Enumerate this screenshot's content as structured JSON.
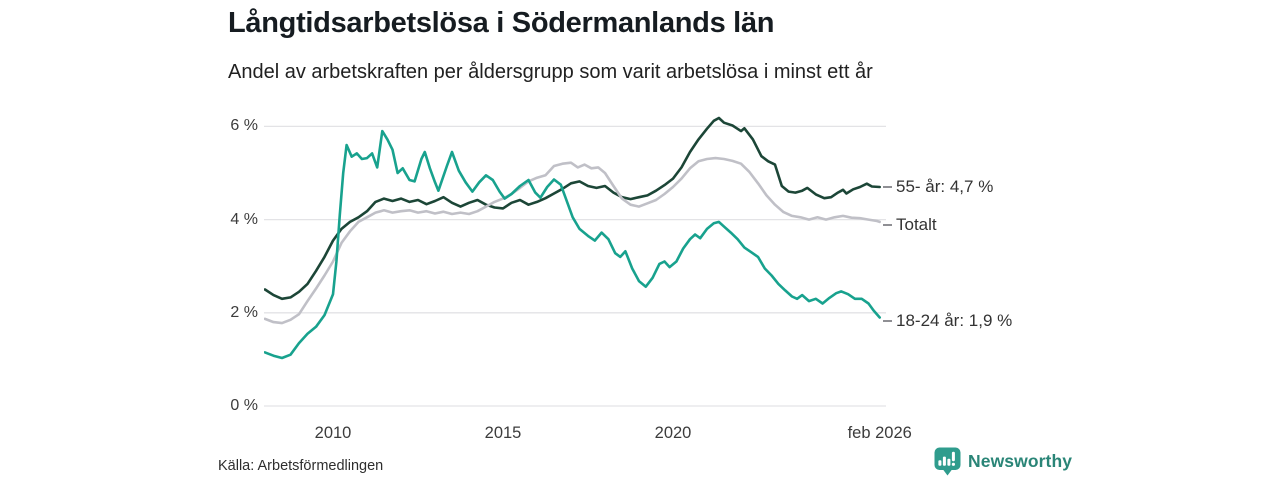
{
  "header": {
    "title": "Långtidsarbetslösa i Södermanlands län",
    "subtitle": "Andel av arbetskraften per åldersgrupp som varit arbetslösa i minst ett år"
  },
  "footer": {
    "source": "Källa: Arbetsförmedlingen",
    "brand": "Newsworthy",
    "brand_icon": "newsworthy-chart-bubble-icon"
  },
  "colors": {
    "age_55_line": "#1c4637",
    "total_line": "#c0c0c7",
    "age_18_24_line": "#18a28e",
    "grid": "#e3e3e6",
    "tick_dash": "#8f8f94",
    "label_text": "#333333",
    "brand_teal": "#2a8577",
    "logo_teal": "#2f9c8d"
  },
  "chart_data": {
    "type": "line",
    "title": "Långtidsarbetslösa i Södermanlands län",
    "subtitle": "Andel av arbetskraften per åldersgrupp som varit arbetslösa i minst ett år",
    "xlabel": "",
    "ylabel": "",
    "xlim": [
      2008.0,
      2026.17
    ],
    "ylim": [
      0,
      6.4
    ],
    "grid": "horizontal",
    "legend_position": "right-end-labels",
    "yticks": [
      {
        "label": "6 %",
        "value": 6
      },
      {
        "label": "4 %",
        "value": 4
      },
      {
        "label": "2 %",
        "value": 2
      },
      {
        "label": "0 %",
        "value": 0
      }
    ],
    "xticks": [
      {
        "label": "2010",
        "value": 2010
      },
      {
        "label": "2015",
        "value": 2015
      },
      {
        "label": "2020",
        "value": 2020
      },
      {
        "label": "feb 2026",
        "value": 2026.08
      }
    ],
    "series": [
      {
        "name": "55- år",
        "end_label": "55- år: 4,7 %",
        "last_value_text": "4,7 %",
        "color": "#1c4637",
        "points": [
          [
            2008.0,
            2.5
          ],
          [
            2008.25,
            2.38
          ],
          [
            2008.5,
            2.3
          ],
          [
            2008.75,
            2.33
          ],
          [
            2009.0,
            2.45
          ],
          [
            2009.25,
            2.62
          ],
          [
            2009.5,
            2.9
          ],
          [
            2009.75,
            3.2
          ],
          [
            2010.0,
            3.55
          ],
          [
            2010.25,
            3.8
          ],
          [
            2010.5,
            3.95
          ],
          [
            2010.75,
            4.05
          ],
          [
            2011.0,
            4.18
          ],
          [
            2011.25,
            4.38
          ],
          [
            2011.5,
            4.45
          ],
          [
            2011.75,
            4.4
          ],
          [
            2012.0,
            4.45
          ],
          [
            2012.25,
            4.38
          ],
          [
            2012.5,
            4.42
          ],
          [
            2012.75,
            4.33
          ],
          [
            2013.0,
            4.4
          ],
          [
            2013.25,
            4.48
          ],
          [
            2013.5,
            4.36
          ],
          [
            2013.75,
            4.28
          ],
          [
            2014.0,
            4.36
          ],
          [
            2014.25,
            4.42
          ],
          [
            2014.5,
            4.32
          ],
          [
            2014.75,
            4.26
          ],
          [
            2015.0,
            4.24
          ],
          [
            2015.25,
            4.36
          ],
          [
            2015.5,
            4.42
          ],
          [
            2015.75,
            4.32
          ],
          [
            2016.0,
            4.38
          ],
          [
            2016.25,
            4.46
          ],
          [
            2016.5,
            4.56
          ],
          [
            2016.75,
            4.66
          ],
          [
            2017.0,
            4.78
          ],
          [
            2017.25,
            4.82
          ],
          [
            2017.5,
            4.72
          ],
          [
            2017.75,
            4.68
          ],
          [
            2018.0,
            4.72
          ],
          [
            2018.25,
            4.58
          ],
          [
            2018.5,
            4.48
          ],
          [
            2018.75,
            4.44
          ],
          [
            2019.0,
            4.48
          ],
          [
            2019.25,
            4.52
          ],
          [
            2019.5,
            4.62
          ],
          [
            2019.75,
            4.74
          ],
          [
            2020.0,
            4.88
          ],
          [
            2020.25,
            5.12
          ],
          [
            2020.5,
            5.45
          ],
          [
            2020.75,
            5.72
          ],
          [
            2021.0,
            5.95
          ],
          [
            2021.2,
            6.12
          ],
          [
            2021.35,
            6.18
          ],
          [
            2021.5,
            6.08
          ],
          [
            2021.75,
            6.02
          ],
          [
            2022.0,
            5.9
          ],
          [
            2022.1,
            5.96
          ],
          [
            2022.35,
            5.72
          ],
          [
            2022.6,
            5.36
          ],
          [
            2022.8,
            5.25
          ],
          [
            2023.0,
            5.18
          ],
          [
            2023.2,
            4.72
          ],
          [
            2023.4,
            4.6
          ],
          [
            2023.6,
            4.58
          ],
          [
            2023.8,
            4.62
          ],
          [
            2023.95,
            4.68
          ],
          [
            2024.2,
            4.54
          ],
          [
            2024.45,
            4.46
          ],
          [
            2024.65,
            4.48
          ],
          [
            2024.85,
            4.58
          ],
          [
            2025.0,
            4.64
          ],
          [
            2025.1,
            4.56
          ],
          [
            2025.3,
            4.65
          ],
          [
            2025.5,
            4.7
          ],
          [
            2025.7,
            4.77
          ],
          [
            2025.85,
            4.71
          ],
          [
            2026.08,
            4.7
          ]
        ]
      },
      {
        "name": "Totalt",
        "end_label": "Totalt",
        "last_value_text": "",
        "color": "#c0c0c7",
        "points": [
          [
            2008.0,
            1.87
          ],
          [
            2008.25,
            1.8
          ],
          [
            2008.5,
            1.78
          ],
          [
            2008.75,
            1.85
          ],
          [
            2009.0,
            1.97
          ],
          [
            2009.25,
            2.25
          ],
          [
            2009.5,
            2.52
          ],
          [
            2009.75,
            2.8
          ],
          [
            2010.0,
            3.1
          ],
          [
            2010.25,
            3.5
          ],
          [
            2010.5,
            3.75
          ],
          [
            2010.75,
            3.95
          ],
          [
            2011.0,
            4.05
          ],
          [
            2011.25,
            4.15
          ],
          [
            2011.5,
            4.2
          ],
          [
            2011.75,
            4.15
          ],
          [
            2012.0,
            4.18
          ],
          [
            2012.25,
            4.2
          ],
          [
            2012.5,
            4.15
          ],
          [
            2012.75,
            4.18
          ],
          [
            2013.0,
            4.13
          ],
          [
            2013.25,
            4.17
          ],
          [
            2013.5,
            4.12
          ],
          [
            2013.75,
            4.15
          ],
          [
            2014.0,
            4.12
          ],
          [
            2014.25,
            4.18
          ],
          [
            2014.5,
            4.28
          ],
          [
            2014.75,
            4.38
          ],
          [
            2015.0,
            4.45
          ],
          [
            2015.25,
            4.55
          ],
          [
            2015.5,
            4.68
          ],
          [
            2015.75,
            4.82
          ],
          [
            2016.0,
            4.9
          ],
          [
            2016.25,
            4.95
          ],
          [
            2016.5,
            5.15
          ],
          [
            2016.75,
            5.2
          ],
          [
            2017.0,
            5.22
          ],
          [
            2017.2,
            5.12
          ],
          [
            2017.4,
            5.18
          ],
          [
            2017.6,
            5.1
          ],
          [
            2017.8,
            5.12
          ],
          [
            2018.0,
            5.0
          ],
          [
            2018.25,
            4.72
          ],
          [
            2018.5,
            4.45
          ],
          [
            2018.75,
            4.32
          ],
          [
            2019.0,
            4.28
          ],
          [
            2019.25,
            4.35
          ],
          [
            2019.5,
            4.42
          ],
          [
            2019.75,
            4.55
          ],
          [
            2020.0,
            4.7
          ],
          [
            2020.25,
            4.88
          ],
          [
            2020.5,
            5.1
          ],
          [
            2020.75,
            5.25
          ],
          [
            2021.0,
            5.3
          ],
          [
            2021.25,
            5.32
          ],
          [
            2021.5,
            5.3
          ],
          [
            2021.75,
            5.26
          ],
          [
            2022.0,
            5.2
          ],
          [
            2022.25,
            5.02
          ],
          [
            2022.5,
            4.78
          ],
          [
            2022.75,
            4.52
          ],
          [
            2023.0,
            4.32
          ],
          [
            2023.25,
            4.16
          ],
          [
            2023.5,
            4.08
          ],
          [
            2023.75,
            4.05
          ],
          [
            2024.0,
            4.0
          ],
          [
            2024.25,
            4.05
          ],
          [
            2024.5,
            4.0
          ],
          [
            2024.75,
            4.05
          ],
          [
            2025.0,
            4.08
          ],
          [
            2025.25,
            4.04
          ],
          [
            2025.5,
            4.03
          ],
          [
            2025.75,
            4.0
          ],
          [
            2026.0,
            3.97
          ],
          [
            2026.08,
            3.95
          ]
        ]
      },
      {
        "name": "18-24 år",
        "end_label": "18-24 år: 1,9 %",
        "last_value_text": "1,9 %",
        "color": "#18a28e",
        "points": [
          [
            2008.0,
            1.15
          ],
          [
            2008.25,
            1.08
          ],
          [
            2008.5,
            1.03
          ],
          [
            2008.75,
            1.1
          ],
          [
            2009.0,
            1.35
          ],
          [
            2009.25,
            1.55
          ],
          [
            2009.5,
            1.7
          ],
          [
            2009.75,
            1.95
          ],
          [
            2010.0,
            2.4
          ],
          [
            2010.1,
            3.1
          ],
          [
            2010.2,
            4.1
          ],
          [
            2010.3,
            5.0
          ],
          [
            2010.4,
            5.6
          ],
          [
            2010.55,
            5.35
          ],
          [
            2010.7,
            5.42
          ],
          [
            2010.85,
            5.3
          ],
          [
            2011.0,
            5.32
          ],
          [
            2011.15,
            5.42
          ],
          [
            2011.3,
            5.12
          ],
          [
            2011.45,
            5.9
          ],
          [
            2011.6,
            5.72
          ],
          [
            2011.75,
            5.5
          ],
          [
            2011.9,
            5.0
          ],
          [
            2012.05,
            5.1
          ],
          [
            2012.25,
            4.85
          ],
          [
            2012.4,
            4.82
          ],
          [
            2012.6,
            5.3
          ],
          [
            2012.7,
            5.45
          ],
          [
            2012.85,
            5.1
          ],
          [
            2013.0,
            4.8
          ],
          [
            2013.1,
            4.62
          ],
          [
            2013.35,
            5.15
          ],
          [
            2013.5,
            5.45
          ],
          [
            2013.7,
            5.05
          ],
          [
            2013.9,
            4.8
          ],
          [
            2014.1,
            4.6
          ],
          [
            2014.3,
            4.8
          ],
          [
            2014.5,
            4.95
          ],
          [
            2014.7,
            4.85
          ],
          [
            2014.9,
            4.6
          ],
          [
            2015.05,
            4.45
          ],
          [
            2015.25,
            4.55
          ],
          [
            2015.5,
            4.72
          ],
          [
            2015.75,
            4.85
          ],
          [
            2015.95,
            4.58
          ],
          [
            2016.1,
            4.47
          ],
          [
            2016.3,
            4.7
          ],
          [
            2016.5,
            4.86
          ],
          [
            2016.7,
            4.75
          ],
          [
            2016.9,
            4.35
          ],
          [
            2017.05,
            4.05
          ],
          [
            2017.25,
            3.8
          ],
          [
            2017.5,
            3.65
          ],
          [
            2017.7,
            3.55
          ],
          [
            2017.9,
            3.72
          ],
          [
            2018.1,
            3.58
          ],
          [
            2018.3,
            3.28
          ],
          [
            2018.45,
            3.2
          ],
          [
            2018.6,
            3.32
          ],
          [
            2018.8,
            2.95
          ],
          [
            2019.0,
            2.68
          ],
          [
            2019.2,
            2.56
          ],
          [
            2019.4,
            2.75
          ],
          [
            2019.6,
            3.05
          ],
          [
            2019.75,
            3.1
          ],
          [
            2019.9,
            2.98
          ],
          [
            2020.1,
            3.1
          ],
          [
            2020.3,
            3.38
          ],
          [
            2020.5,
            3.58
          ],
          [
            2020.65,
            3.68
          ],
          [
            2020.8,
            3.6
          ],
          [
            2021.0,
            3.8
          ],
          [
            2021.2,
            3.92
          ],
          [
            2021.35,
            3.95
          ],
          [
            2021.5,
            3.85
          ],
          [
            2021.7,
            3.72
          ],
          [
            2021.9,
            3.58
          ],
          [
            2022.1,
            3.4
          ],
          [
            2022.3,
            3.3
          ],
          [
            2022.5,
            3.2
          ],
          [
            2022.7,
            2.95
          ],
          [
            2022.9,
            2.8
          ],
          [
            2023.1,
            2.62
          ],
          [
            2023.3,
            2.48
          ],
          [
            2023.5,
            2.35
          ],
          [
            2023.65,
            2.3
          ],
          [
            2023.8,
            2.38
          ],
          [
            2024.0,
            2.25
          ],
          [
            2024.2,
            2.3
          ],
          [
            2024.4,
            2.2
          ],
          [
            2024.6,
            2.32
          ],
          [
            2024.8,
            2.42
          ],
          [
            2024.95,
            2.46
          ],
          [
            2025.15,
            2.4
          ],
          [
            2025.35,
            2.3
          ],
          [
            2025.55,
            2.3
          ],
          [
            2025.75,
            2.2
          ],
          [
            2025.9,
            2.05
          ],
          [
            2026.08,
            1.9
          ]
        ]
      }
    ]
  }
}
